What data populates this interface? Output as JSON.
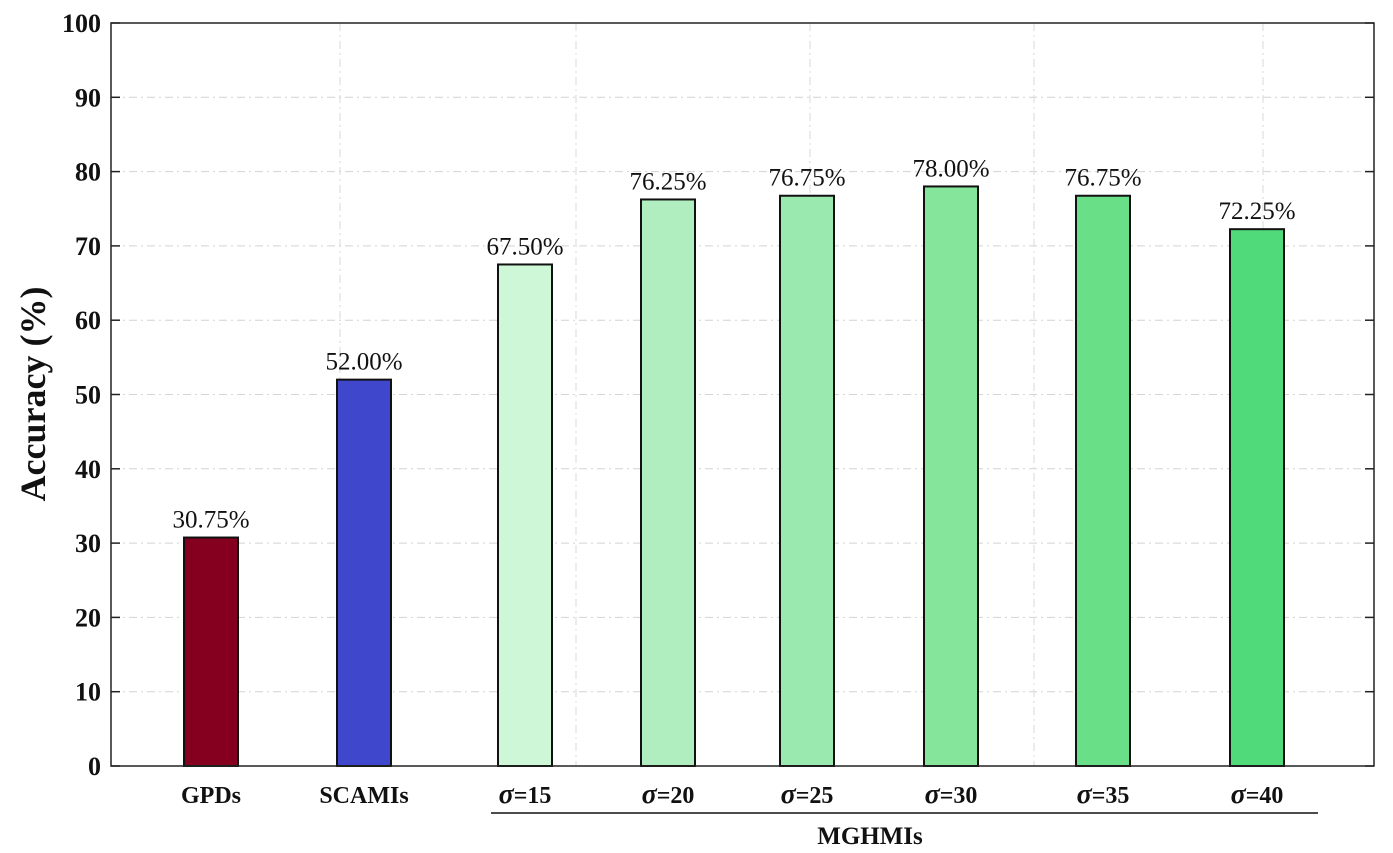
{
  "chart_data": {
    "type": "bar",
    "ylabel": "Accuracy (%)",
    "xlabel": "",
    "ylim": [
      0,
      100
    ],
    "yticks": [
      0,
      10,
      20,
      30,
      40,
      50,
      60,
      70,
      80,
      90,
      100
    ],
    "grid": true,
    "categories": [
      {
        "label": "GPDs",
        "sigma": false
      },
      {
        "label": "SCAMIs",
        "sigma": false
      },
      {
        "label": "=15",
        "sigma": true
      },
      {
        "label": "=20",
        "sigma": true
      },
      {
        "label": "=25",
        "sigma": true
      },
      {
        "label": "=30",
        "sigma": true
      },
      {
        "label": "=35",
        "sigma": true
      },
      {
        "label": "=40",
        "sigma": true
      }
    ],
    "values": [
      30.75,
      52.0,
      67.5,
      76.25,
      76.75,
      78.0,
      76.75,
      72.25
    ],
    "value_labels": [
      "30.75%",
      "52.00%",
      "67.50%",
      "76.25%",
      "76.75%",
      "78.00%",
      "76.75%",
      "72.25%"
    ],
    "colors": [
      "#84001e",
      "#3f48cc",
      "#cef7d8",
      "#b0eebf",
      "#9ae9ae",
      "#85e59b",
      "#69df88",
      "#51da79"
    ],
    "sigma_symbol": "σ",
    "group": {
      "label": "MGHMIs",
      "from": 2,
      "to": 7
    }
  }
}
